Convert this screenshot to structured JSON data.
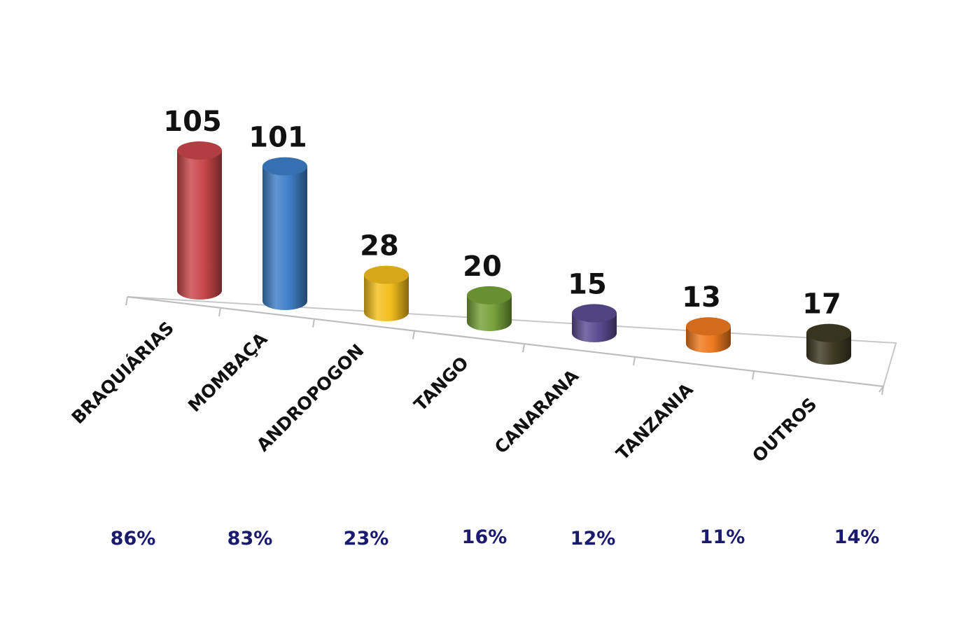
{
  "chart_data": {
    "type": "bar",
    "categories": [
      "BRAQUIÁRIAS",
      "MOMBAÇA",
      "ANDROPOGON",
      "TANGO",
      "CANARANA",
      "TANZANIA",
      "OUTROS"
    ],
    "values": [
      105,
      101,
      28,
      20,
      15,
      13,
      17
    ],
    "percent_labels": [
      "86%",
      "83%",
      "23%",
      "16%",
      "12%",
      "11%",
      "14%"
    ],
    "colors": [
      "#c9474a",
      "#3f7fc8",
      "#f3be1c",
      "#77a23a",
      "#5a4d92",
      "#ef7a1f",
      "#3e3b24"
    ],
    "title": "",
    "xlabel": "",
    "ylabel": "",
    "ylim": [
      0,
      105
    ],
    "grid": false,
    "legend": "none",
    "style": "3d-cylinder"
  }
}
